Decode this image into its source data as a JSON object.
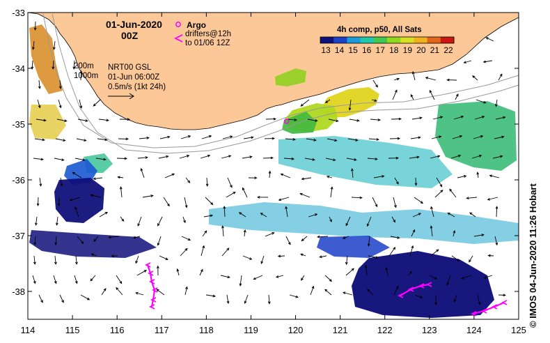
{
  "title": {
    "date": "01-Jun-2020",
    "hour": "00Z"
  },
  "legend": {
    "argo_label": "Argo",
    "drifters_line1": "drifters@12h",
    "drifters_line2": "to 01/06 12Z",
    "argo_color": "#ff00ff",
    "drifter_color": "#ff00ff"
  },
  "colorbar": {
    "title": "4h comp, p50, All Sats",
    "ticks": [
      "13",
      "14",
      "15",
      "16",
      "17",
      "18",
      "19",
      "20",
      "21",
      "22"
    ],
    "colors": [
      "#10107a",
      "#1a40c8",
      "#1a9ad8",
      "#20c8b0",
      "#40c850",
      "#90d820",
      "#d8e020",
      "#f0b020",
      "#e06818",
      "#c81810"
    ]
  },
  "annotations": {
    "isobath_200": "200m",
    "isobath_1000": "1000m",
    "product_line1": "NRT00 GSL",
    "product_line2": "01-Jun 06:00Z",
    "scale_label": "0.5m/s (1kt 24h)"
  },
  "axes": {
    "x_ticks": [
      "114",
      "115",
      "116",
      "117",
      "118",
      "119",
      "120",
      "121",
      "122",
      "123",
      "124",
      "125"
    ],
    "y_ticks": [
      "-33",
      "-34",
      "-35",
      "-36",
      "-37",
      "-38"
    ],
    "x_range": [
      114,
      125
    ],
    "y_range": [
      -38.5,
      -33
    ]
  },
  "argo_float": {
    "lon": 119.8,
    "lat": -34.95
  },
  "credit": "© IMOS 04-Jun-2020 11:26 Hobart",
  "land_color": "#fcc898"
}
